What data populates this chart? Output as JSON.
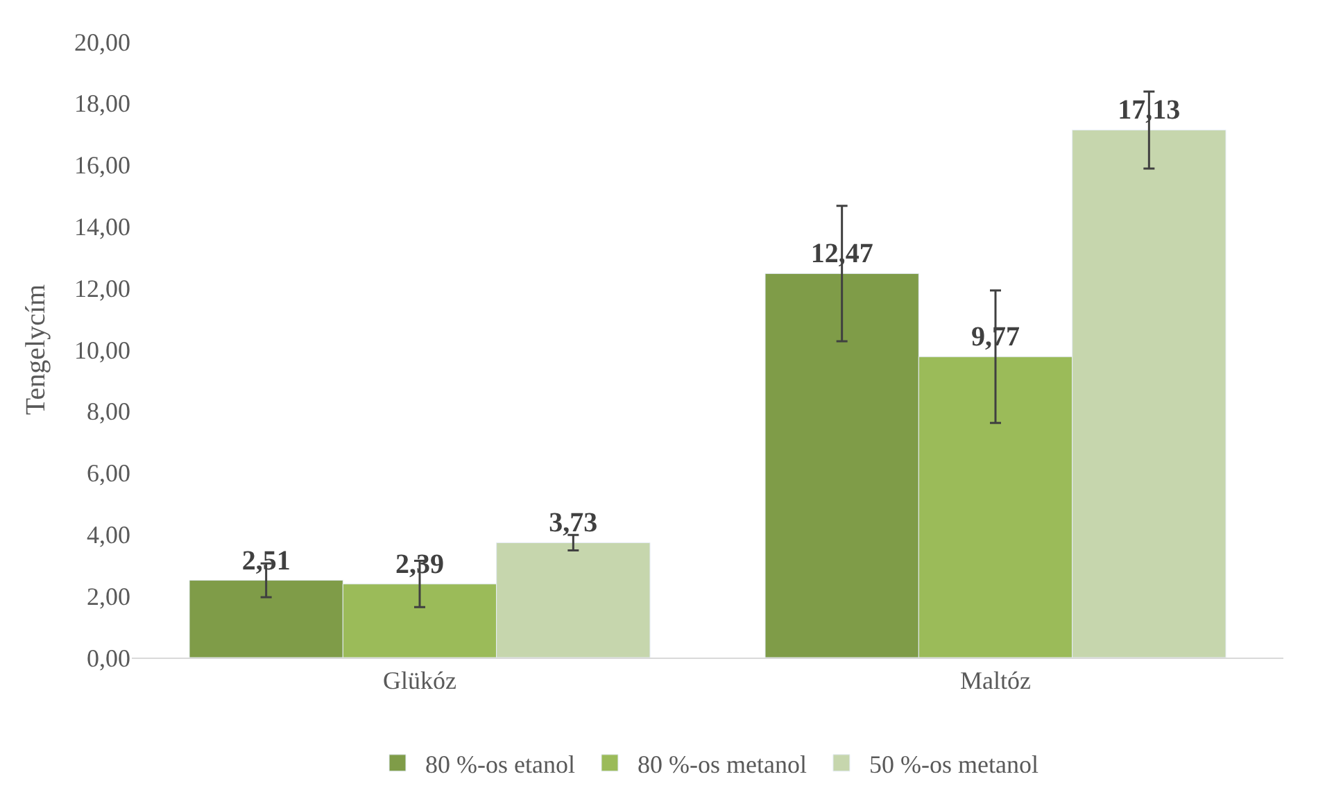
{
  "chart_data": {
    "type": "bar",
    "ylabel": "Tengelycím",
    "categories": [
      "Glükóz",
      "Maltóz"
    ],
    "series": [
      {
        "name": "80 %-os etanol",
        "color": "#7f9c48",
        "values": [
          2.51,
          12.47
        ],
        "errors": [
          0.55,
          2.2
        ],
        "value_labels": [
          "2,51",
          "12,47"
        ]
      },
      {
        "name": "80 %-os metanol",
        "color": "#9bbb59",
        "values": [
          2.39,
          9.77
        ],
        "errors": [
          0.75,
          2.15
        ],
        "value_labels": [
          "2,39",
          "9,77"
        ]
      },
      {
        "name": "50 %-os metanol",
        "color": "#c6d6ad",
        "values": [
          3.73,
          17.13
        ],
        "errors": [
          0.25,
          1.25
        ],
        "value_labels": [
          "3,73",
          "17,13"
        ]
      }
    ],
    "ylim": [
      0,
      20
    ],
    "yticks": [
      {
        "value": 0,
        "label": "0,00"
      },
      {
        "value": 2,
        "label": "2,00"
      },
      {
        "value": 4,
        "label": "4,00"
      },
      {
        "value": 6,
        "label": "6,00"
      },
      {
        "value": 8,
        "label": "8,00"
      },
      {
        "value": 10,
        "label": "10,00"
      },
      {
        "value": 12,
        "label": "12,00"
      },
      {
        "value": 14,
        "label": "14,00"
      },
      {
        "value": 16,
        "label": "16,00"
      },
      {
        "value": 18,
        "label": "18,00"
      },
      {
        "value": 20,
        "label": "20,00"
      }
    ],
    "grid": false,
    "legend": "bottom"
  }
}
